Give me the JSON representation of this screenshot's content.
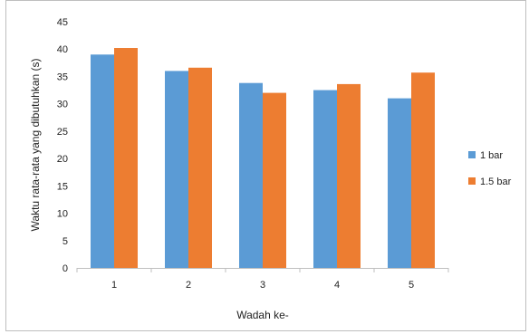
{
  "chart_data": {
    "type": "bar",
    "title": "",
    "xlabel": "Wadah ke-",
    "ylabel": "Waktu rata-rata yang dibutuhkan (s)",
    "categories": [
      "1",
      "2",
      "3",
      "4",
      "5"
    ],
    "series": [
      {
        "name": "1 bar",
        "color": "#5b9bd5",
        "values": [
          39,
          36,
          33.8,
          32.5,
          31
        ]
      },
      {
        "name": "1.5 bar",
        "color": "#ed7d31",
        "values": [
          40.2,
          36.6,
          32,
          33.6,
          35.7
        ]
      }
    ],
    "ylim": [
      0,
      45
    ],
    "yticks": [
      "0",
      "5",
      "10",
      "15",
      "20",
      "25",
      "30",
      "35",
      "40",
      "45"
    ],
    "grid": false,
    "legend_position": "right"
  }
}
